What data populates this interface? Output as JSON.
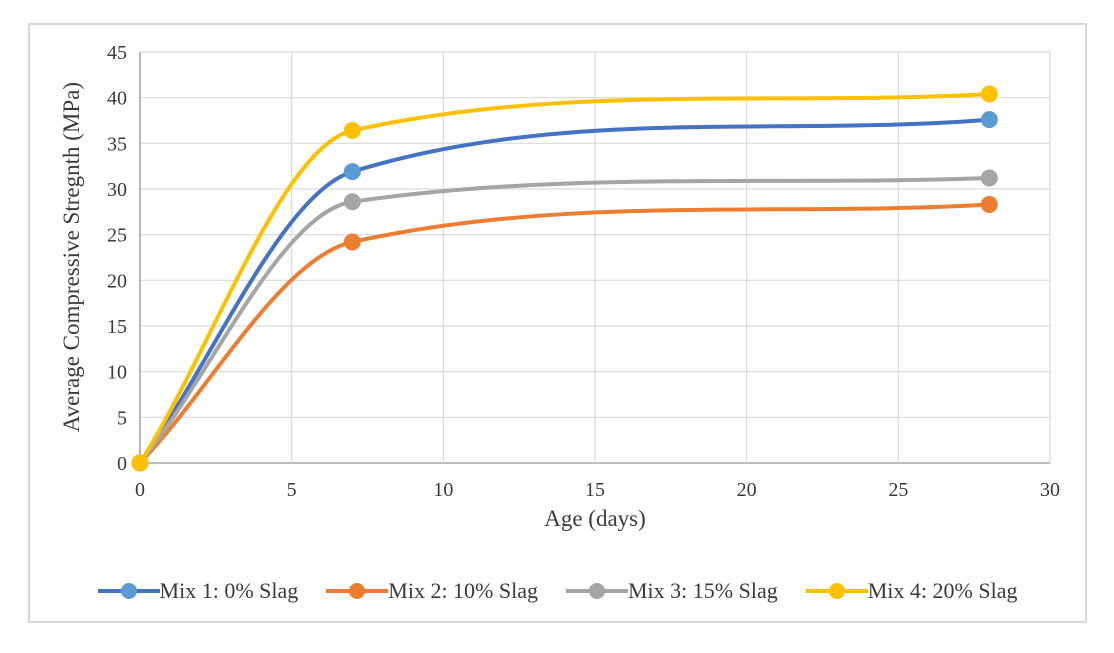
{
  "chart_data": {
    "type": "line",
    "title": "",
    "xlabel": "Age (days)",
    "ylabel": "Average Compressive Stregnth (MPa)",
    "xlim": [
      0,
      30
    ],
    "ylim": [
      0,
      45
    ],
    "x_ticks": [
      0,
      5,
      10,
      15,
      20,
      25,
      30
    ],
    "y_ticks": [
      0,
      5,
      10,
      15,
      20,
      25,
      30,
      35,
      40,
      45
    ],
    "grid": true,
    "legend_position": "bottom",
    "x": [
      0,
      7,
      28
    ],
    "series": [
      {
        "name": "Mix 1: 0% Slag",
        "values": [
          0,
          31.9,
          37.6
        ],
        "line_color": "#4472c4",
        "marker_color": "#5b9bd5"
      },
      {
        "name": "Mix 2: 10% Slag",
        "values": [
          0,
          24.2,
          28.3
        ],
        "line_color": "#ed7d31",
        "marker_color": "#ed7d31"
      },
      {
        "name": "Mix 3: 15% Slag",
        "values": [
          0,
          28.6,
          31.2
        ],
        "line_color": "#a5a5a5",
        "marker_color": "#a5a5a5"
      },
      {
        "name": "Mix 4: 20% Slag",
        "values": [
          0,
          36.4,
          40.4
        ],
        "line_color": "#ffc000",
        "marker_color": "#ffc000"
      }
    ],
    "style_colors": {
      "gridline": "#d9d9d9",
      "axis_line": "#a6a6a6",
      "figure_border": "#d9d9d9",
      "text": "#3a3a3a",
      "background": "#ffffff"
    }
  }
}
